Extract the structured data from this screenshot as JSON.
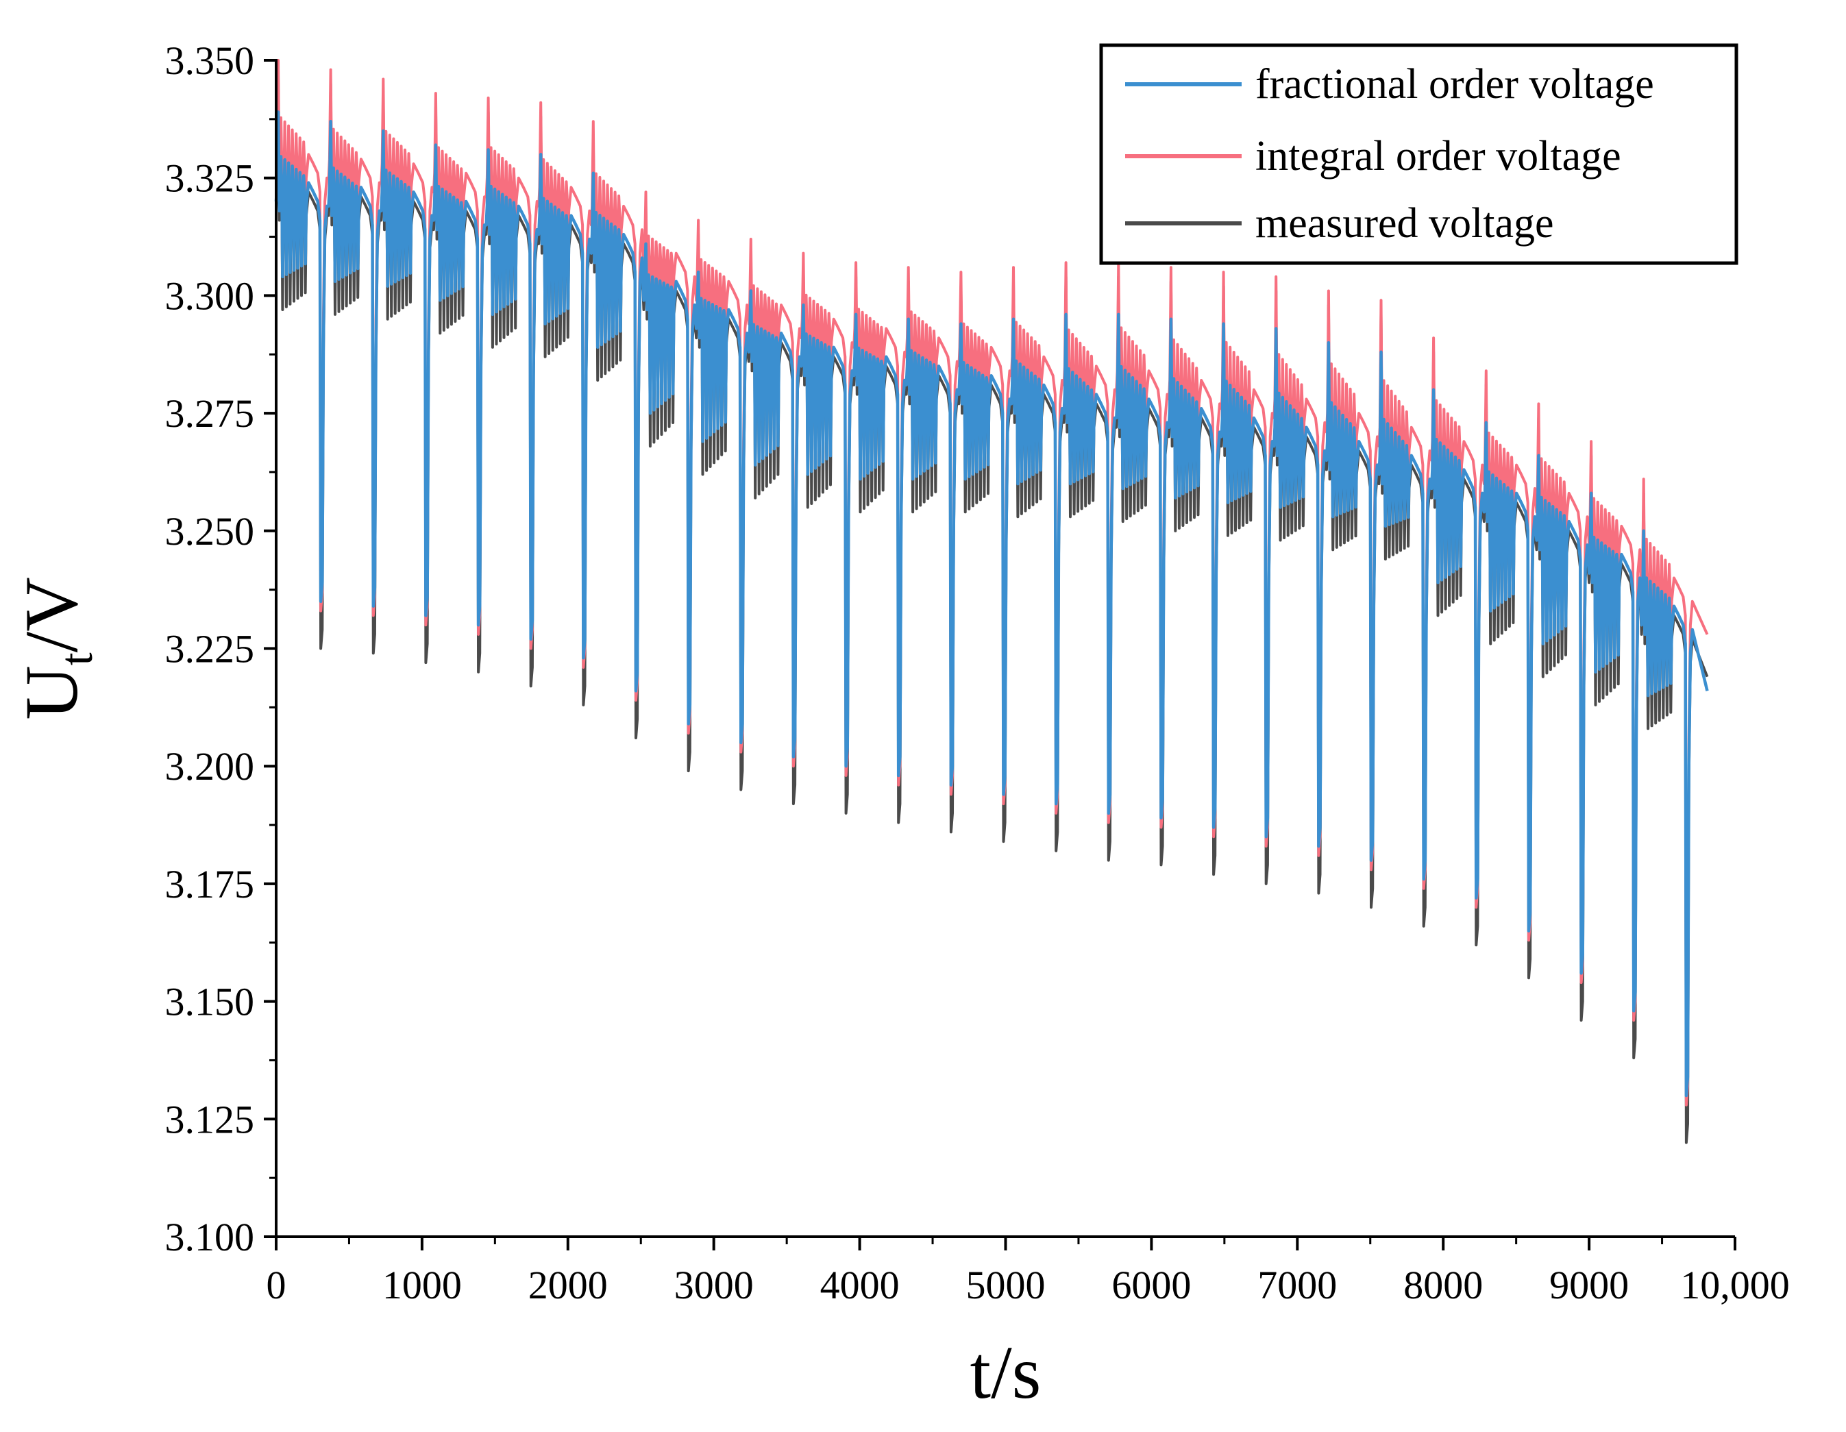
{
  "chart_data": {
    "type": "line",
    "title": "",
    "xlabel": "t/s",
    "ylabel": {
      "main": "U",
      "subscript": "t",
      "suffix": "/V"
    },
    "xlim": [
      0,
      10000
    ],
    "ylim": [
      3.1,
      3.35
    ],
    "x_ticks": [
      0,
      1000,
      2000,
      3000,
      4000,
      5000,
      6000,
      7000,
      8000,
      9000,
      10000
    ],
    "x_tick_labels": [
      "0",
      "1000",
      "2000",
      "3000",
      "4000",
      "5000",
      "6000",
      "7000",
      "8000",
      "9000",
      "10,000"
    ],
    "y_ticks": [
      3.1,
      3.125,
      3.15,
      3.175,
      3.2,
      3.225,
      3.25,
      3.275,
      3.3,
      3.325,
      3.35
    ],
    "y_tick_labels": [
      "3.100",
      "3.125",
      "3.150",
      "3.175",
      "3.200",
      "3.225",
      "3.250",
      "3.275",
      "3.300",
      "3.325",
      "3.350"
    ],
    "grid": false,
    "legend_position": "top-right",
    "cycle_period_s": 360,
    "series": [
      {
        "name": "measured voltage",
        "color": "#4a4a4a",
        "cycle_start_t": [
          0,
          360,
          720,
          1080,
          1440,
          1800,
          2160,
          2520,
          2880,
          3240,
          3600,
          3960,
          4320,
          4680,
          5040,
          5400,
          5760,
          6120,
          6480,
          6840,
          7200,
          7560,
          7920,
          8280,
          8640,
          9000,
          9360
        ],
        "rest_level": [
          3.318,
          3.317,
          3.316,
          3.314,
          3.313,
          3.311,
          3.307,
          3.297,
          3.291,
          3.286,
          3.283,
          3.281,
          3.279,
          3.277,
          3.275,
          3.273,
          3.272,
          3.27,
          3.268,
          3.266,
          3.263,
          3.26,
          3.257,
          3.252,
          3.246,
          3.239,
          3.228
        ],
        "peak": [
          3.347,
          3.345,
          3.343,
          3.34,
          3.339,
          3.338,
          3.334,
          3.319,
          3.313,
          3.309,
          3.306,
          3.304,
          3.303,
          3.302,
          3.303,
          3.304,
          3.304,
          3.303,
          3.302,
          3.301,
          3.298,
          3.296,
          3.288,
          3.281,
          3.274,
          3.266,
          3.258
        ],
        "low_pulse": [
          3.297,
          3.296,
          3.295,
          3.292,
          3.289,
          3.287,
          3.282,
          3.268,
          3.262,
          3.257,
          3.255,
          3.254,
          3.254,
          3.254,
          3.253,
          3.253,
          3.252,
          3.25,
          3.249,
          3.248,
          3.246,
          3.244,
          3.232,
          3.226,
          3.219,
          3.213,
          3.208
        ],
        "deep_dip": [
          3.225,
          3.224,
          3.222,
          3.22,
          3.217,
          3.213,
          3.206,
          3.199,
          3.195,
          3.192,
          3.19,
          3.188,
          3.186,
          3.184,
          3.182,
          3.18,
          3.179,
          3.177,
          3.175,
          3.173,
          3.17,
          3.166,
          3.162,
          3.155,
          3.146,
          3.138,
          3.12
        ],
        "end_value": 3.219
      },
      {
        "name": "integral order voltage",
        "color": "#f76f7f",
        "offset_peak": 0.003,
        "offset_rest": 0.008,
        "offset_low": 0.012,
        "offset_dip": 0.008,
        "end_value": 3.228
      },
      {
        "name": "fractional order voltage",
        "color": "#3b8fd0",
        "offset_peak": -0.008,
        "offset_rest": 0.002,
        "offset_low": 0.007,
        "offset_dip": 0.01,
        "end_value": 3.216
      }
    ]
  }
}
